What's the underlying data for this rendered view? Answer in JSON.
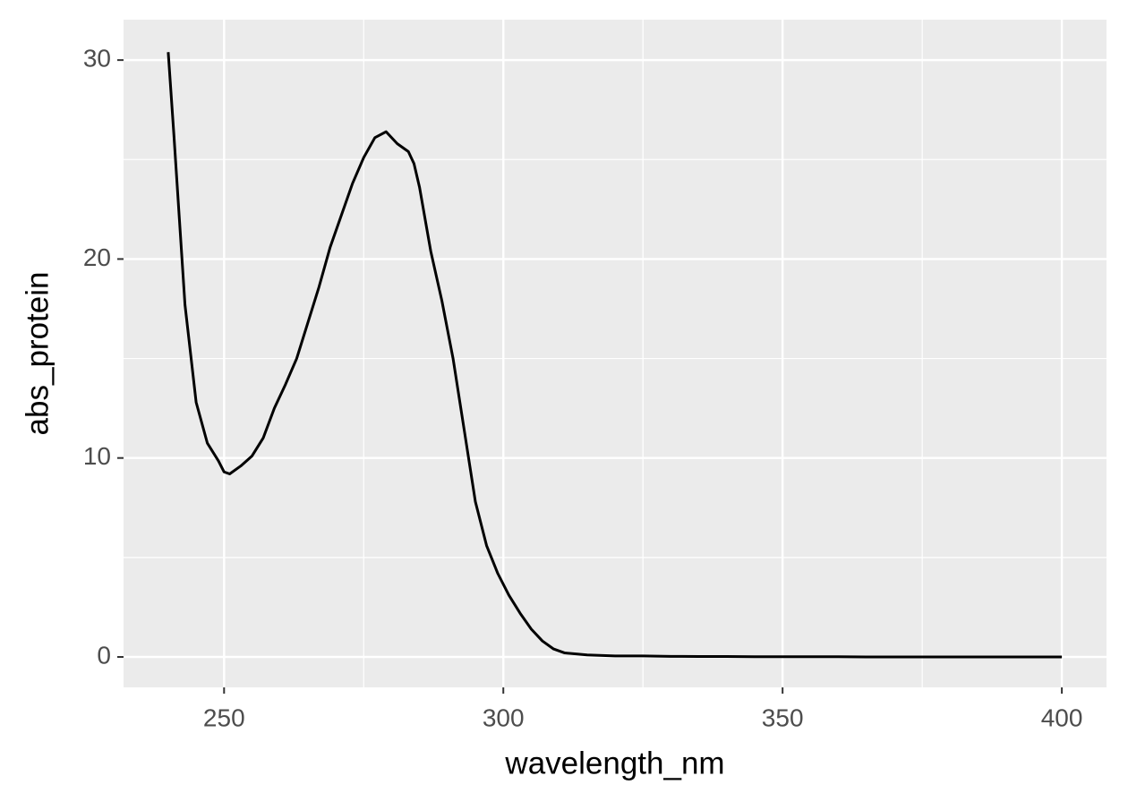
{
  "chart_data": {
    "type": "line",
    "x_label": "wavelength_nm",
    "y_label": "abs_protein",
    "x": [
      240,
      241,
      242,
      243,
      245,
      247,
      249,
      250,
      251,
      253,
      255,
      257,
      259,
      261,
      263,
      265,
      267,
      269,
      271,
      273,
      275,
      277,
      279,
      281,
      283,
      284,
      285,
      287,
      289,
      291,
      293,
      295,
      297,
      299,
      301,
      303,
      305,
      307,
      309,
      311,
      313,
      315,
      320,
      325,
      330,
      335,
      340,
      345,
      350,
      355,
      360,
      365,
      370,
      375,
      380,
      385,
      390,
      395,
      400
    ],
    "series": [
      {
        "name": "abs_protein",
        "color": "#000000",
        "values": [
          30.4,
          26.3,
          22.0,
          17.7,
          12.8,
          10.75,
          9.85,
          9.3,
          9.2,
          9.6,
          10.1,
          11.0,
          12.5,
          13.7,
          15.0,
          16.8,
          18.6,
          20.6,
          22.2,
          23.8,
          25.1,
          26.1,
          26.4,
          25.8,
          25.4,
          24.8,
          23.6,
          20.4,
          17.9,
          15.0,
          11.4,
          7.8,
          5.6,
          4.2,
          3.1,
          2.2,
          1.4,
          0.8,
          0.4,
          0.2,
          0.15,
          0.1,
          0.05,
          0.05,
          0.03,
          0.02,
          0.02,
          0.01,
          0.01,
          0.01,
          0.01,
          0.0,
          0.0,
          0.0,
          0.0,
          0.0,
          0.0,
          0.0,
          0.0
        ]
      }
    ],
    "xlim": [
      232,
      408
    ],
    "xticks": [
      250,
      300,
      350,
      400
    ],
    "ylim": [
      -1.53,
      32.03
    ],
    "yticks": [
      0,
      10,
      20,
      30
    ],
    "grid": true,
    "minor_grid": true,
    "background": "#ebebeb"
  }
}
